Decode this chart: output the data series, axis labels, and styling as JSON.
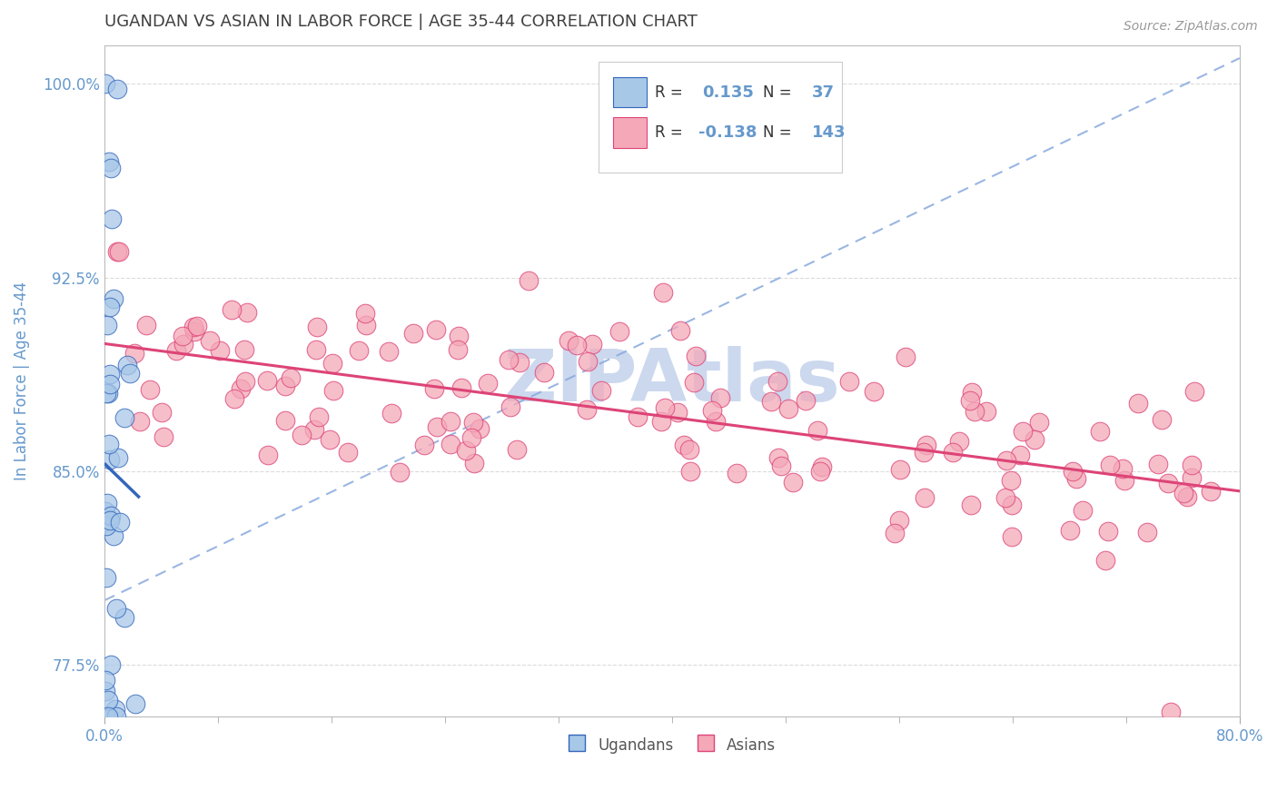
{
  "title": "UGANDAN VS ASIAN IN LABOR FORCE | AGE 35-44 CORRELATION CHART",
  "source_text": "Source: ZipAtlas.com",
  "ylabel": "In Labor Force | Age 35-44",
  "xlim": [
    0.0,
    0.8
  ],
  "ylim": [
    0.755,
    1.015
  ],
  "yticks": [
    0.775,
    0.85,
    0.925,
    1.0
  ],
  "ytick_labels": [
    "77.5%",
    "85.0%",
    "92.5%",
    "100.0%"
  ],
  "xtick_labels": [
    "0.0%",
    "80.0%"
  ],
  "legend_r_ugandan": "0.135",
  "legend_n_ugandan": "37",
  "legend_r_asian": "-0.138",
  "legend_n_asian": "143",
  "ugandan_color": "#a8c8e8",
  "asian_color": "#f4a8b8",
  "trend_ugandan_color": "#3366bb",
  "trend_asian_color": "#dd4477",
  "trend_dashed_color": "#88aadd",
  "background_color": "#ffffff",
  "grid_color": "#cccccc",
  "title_color": "#404040",
  "axis_label_color": "#6699cc",
  "watermark_color": "#ccd8ee",
  "watermark_text": "ZIPAtlas"
}
